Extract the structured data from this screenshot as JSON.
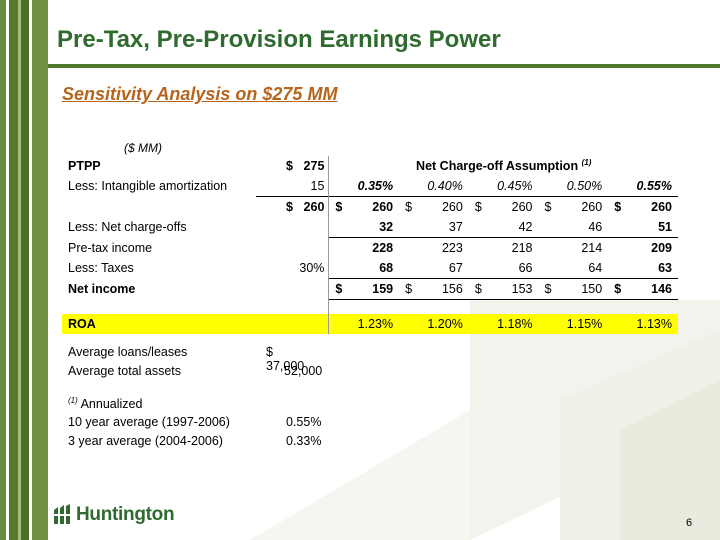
{
  "slide": {
    "title": "Pre-Tax, Pre-Provision Earnings Power",
    "subtitle": "Sensitivity Analysis on $275 MM",
    "page_number": "6"
  },
  "table": {
    "unit_label": "($ MM)",
    "header_label": "Net Charge-off Assumption",
    "header_footnote": "(1)",
    "dollar": "$",
    "rows": {
      "ptpp": {
        "label": "PTPP",
        "c1": "$",
        "c2": "275"
      },
      "intangible": {
        "label": "Less: Intangible amortization",
        "c2": "15",
        "v": [
          "0.35%",
          "0.40%",
          "0.45%",
          "0.50%",
          "0.55%"
        ]
      },
      "subtotal": {
        "c1": "$",
        "c2": "260",
        "v": [
          "260",
          "260",
          "260",
          "260",
          "260"
        ]
      },
      "nco": {
        "label": "Less: Net charge-offs",
        "v": [
          "32",
          "37",
          "42",
          "46",
          "51"
        ]
      },
      "pretax": {
        "label": "Pre-tax income",
        "v": [
          "228",
          "223",
          "218",
          "214",
          "209"
        ]
      },
      "taxes": {
        "label": "Less: Taxes",
        "c2": "30%",
        "v": [
          "68",
          "67",
          "66",
          "64",
          "63"
        ]
      },
      "netincome": {
        "label": "Net income",
        "v": [
          "159",
          "156",
          "153",
          "150",
          "146"
        ]
      },
      "roa": {
        "label": "ROA",
        "v": [
          "1.23%",
          "1.20%",
          "1.18%",
          "1.15%",
          "1.13%"
        ]
      }
    }
  },
  "footer": {
    "avg_loans_label": "Average loans/leases",
    "avg_loans_value": "$ 37,000",
    "avg_assets_label": "Average total assets",
    "avg_assets_value": "52,000",
    "note_marker": "(1)",
    "note_text": "Annualized",
    "ten_year_label": "10 year average (1997-2006)",
    "ten_year_value": "0.55%",
    "three_year_label": "3 year average (2004-2006)",
    "three_year_value": "0.33%"
  },
  "brand": {
    "logo_text": "Huntington",
    "green": "#2f6b2f",
    "orange": "#b5651d",
    "highlight": "#ffff00"
  }
}
